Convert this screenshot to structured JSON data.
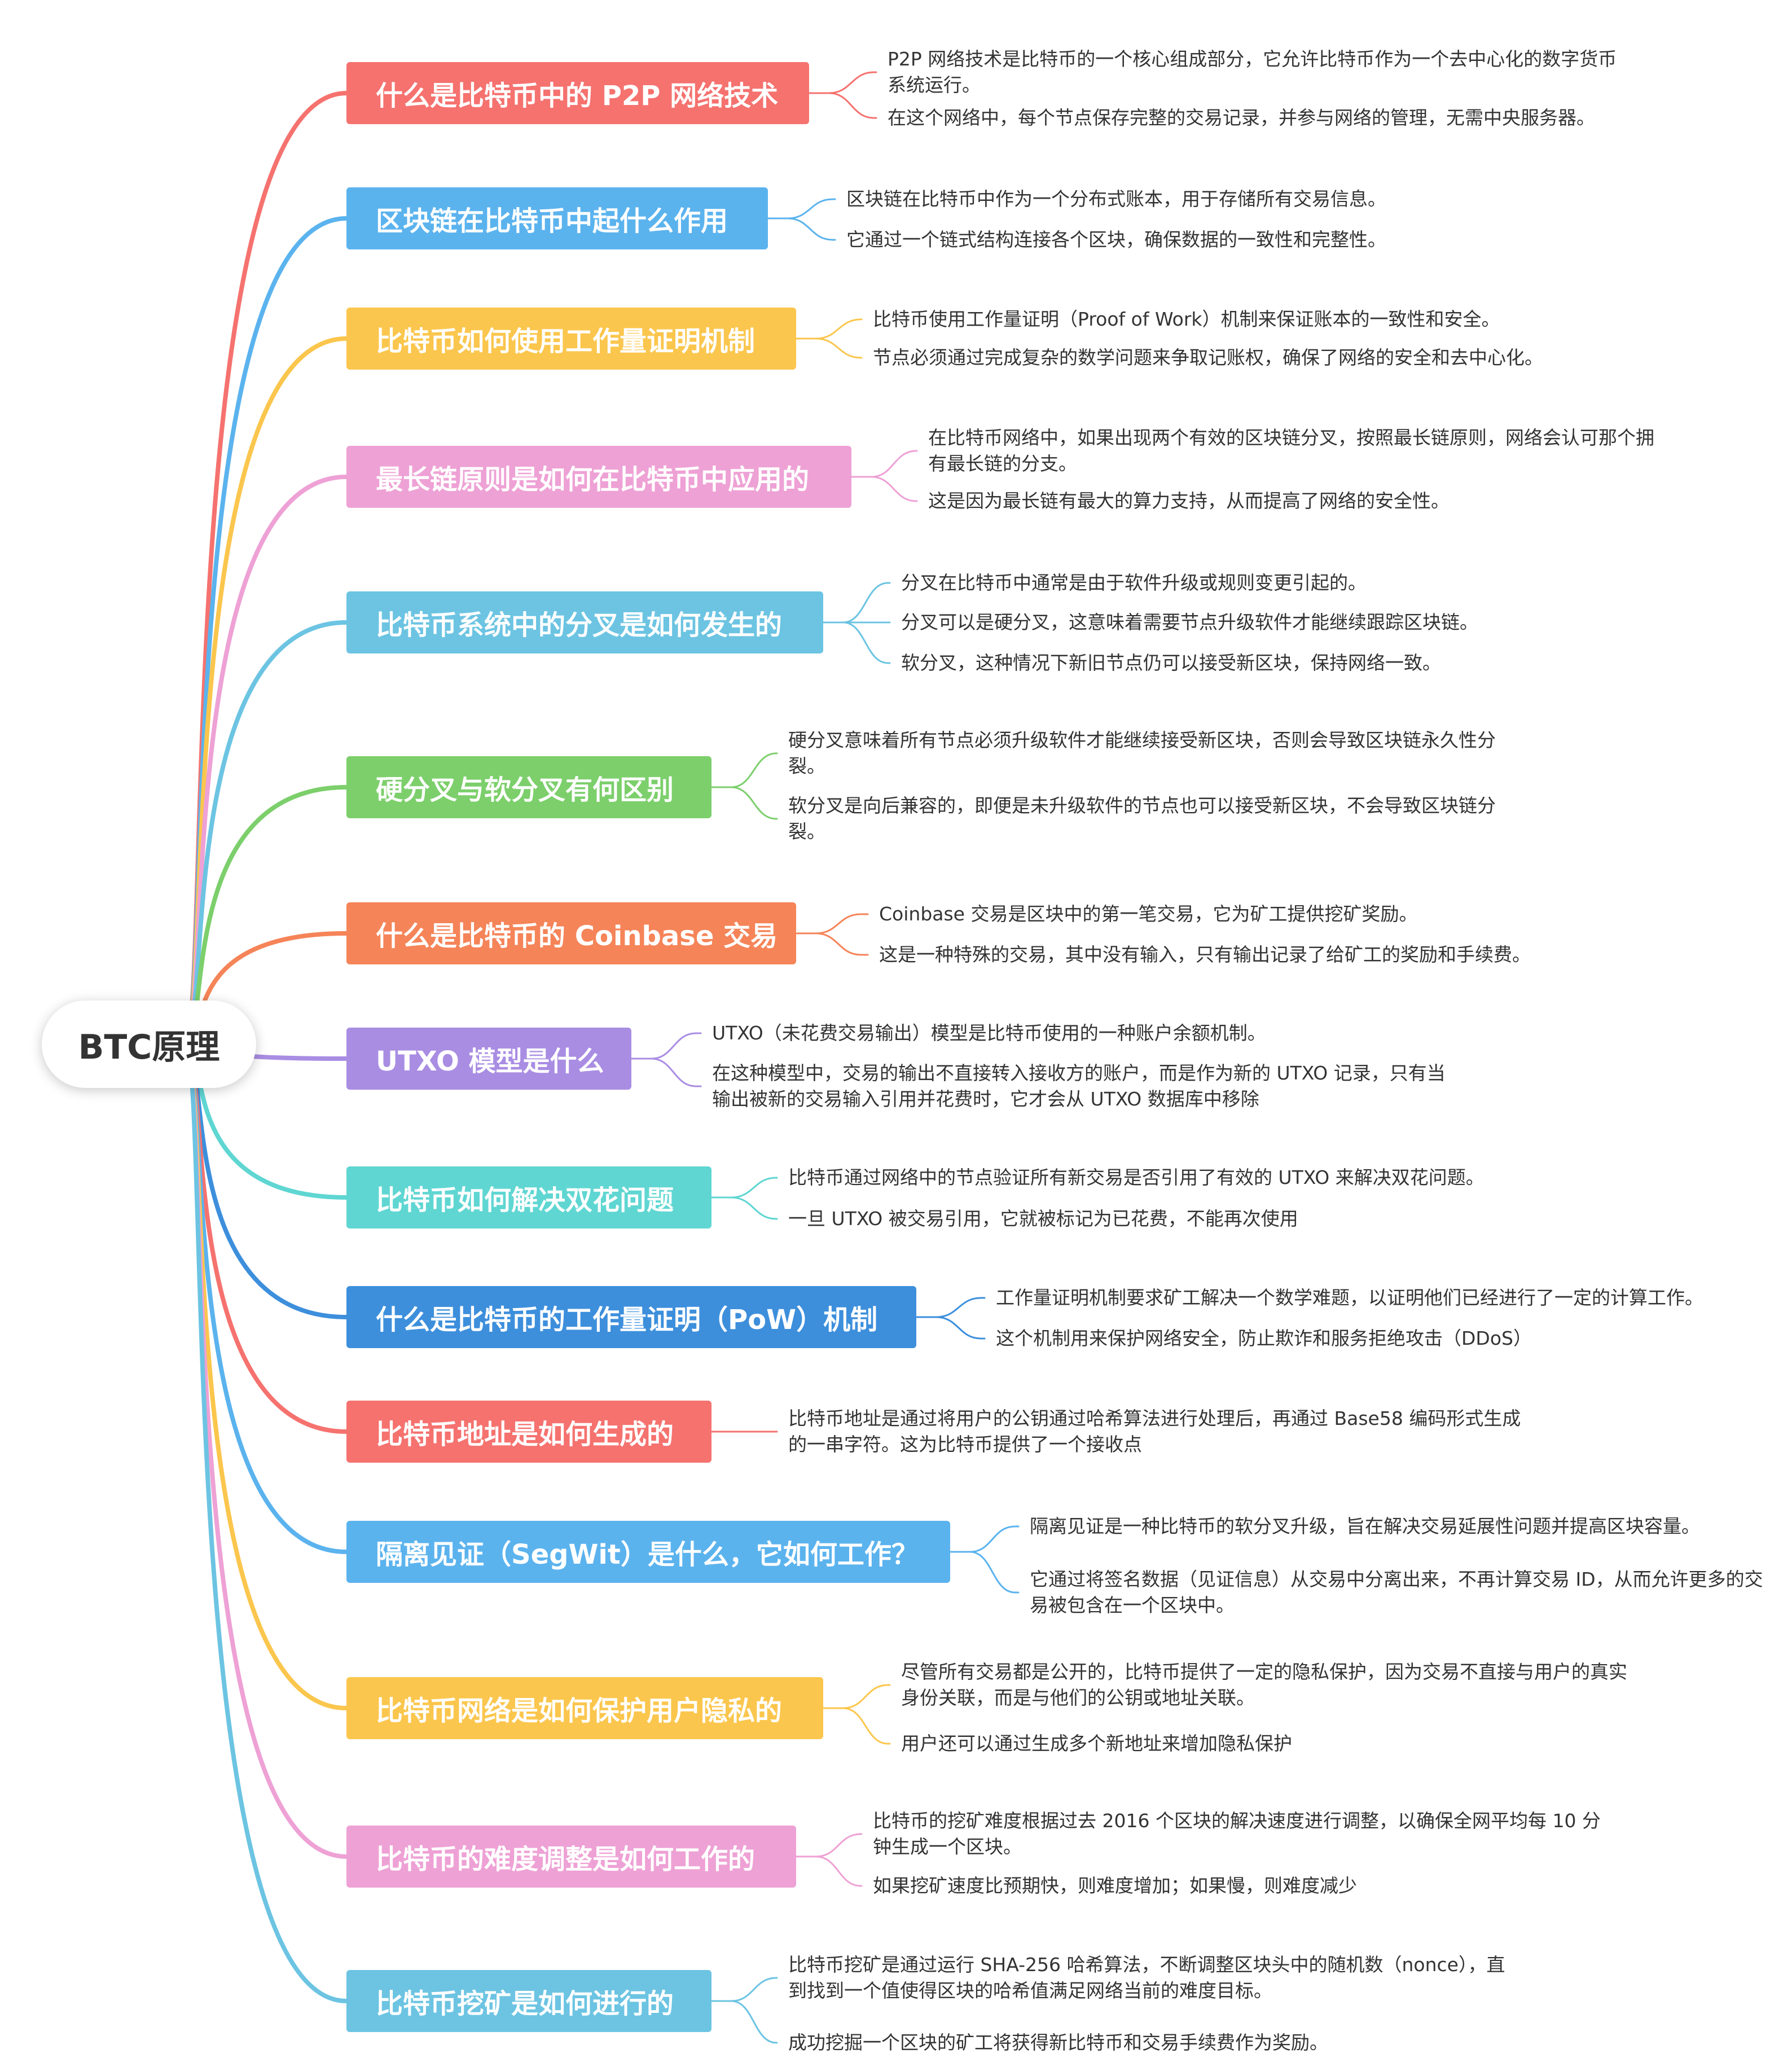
{
  "root": {
    "label": "BTC原理"
  },
  "topics": [
    {
      "label": "什么是比特币中的 P2P 网络技术",
      "color": "#f5726f",
      "notes": [
        "P2P 网络技术是比特币的一个核心组成部分，它允许比特币作为一个去中心化的数字货币系统运行。",
        "在这个网络中，每个节点保存完整的交易记录，并参与网络的管理，无需中央服务器。"
      ]
    },
    {
      "label": "区块链在比特币中起什么作用",
      "color": "#5bb3ee",
      "notes": [
        "区块链在比特币中作为一个分布式账本，用于存储所有交易信息。",
        "它通过一个链式结构连接各个区块，确保数据的一致性和完整性。"
      ]
    },
    {
      "label": "比特币如何使用工作量证明机制",
      "color": "#fbc64d",
      "notes": [
        "比特币使用工作量证明（Proof of Work）机制来保证账本的一致性和安全。",
        "节点必须通过完成复杂的数学问题来争取记账权，确保了网络的安全和去中心化。"
      ]
    },
    {
      "label": "最长链原则是如何在比特币中应用的",
      "color": "#eea1d5",
      "notes": [
        "在比特币网络中，如果出现两个有效的区块链分叉，按照最长链原则，网络会认可那个拥有最长链的分支。",
        "这是因为最长链有最大的算力支持，从而提高了网络的安全性。"
      ]
    },
    {
      "label": "比特币系统中的分叉是如何发生的",
      "color": "#6cc4e2",
      "notes": [
        "分叉在比特币中通常是由于软件升级或规则变更引起的。",
        "分叉可以是硬分叉，这意味着需要节点升级软件才能继续跟踪区块链。",
        "软分叉，这种情况下新旧节点仍可以接受新区块，保持网络一致。"
      ]
    },
    {
      "label": "硬分叉与软分叉有何区别",
      "color": "#7ccf6b",
      "notes": [
        "硬分叉意味着所有节点必须升级软件才能继续接受新区块，否则会导致区块链永久性分裂。",
        "软分叉是向后兼容的，即便是未升级软件的节点也可以接受新区块，不会导致区块链分裂。"
      ]
    },
    {
      "label": "什么是比特币的 Coinbase 交易",
      "color": "#f58458",
      "notes": [
        "Coinbase 交易是区块中的第一笔交易，它为矿工提供挖矿奖励。",
        "这是一种特殊的交易，其中没有输入，只有输出记录了给矿工的奖励和手续费。"
      ]
    },
    {
      "label": "UTXO 模型是什么",
      "color": "#a98de3",
      "notes": [
        "UTXO（未花费交易输出）模型是比特币使用的一种账户余额机制。",
        "在这种模型中，交易的输出不直接转入接收方的账户，而是作为新的 UTXO 记录，只有当输出被新的交易输入引用并花费时，它才会从 UTXO 数据库中移除"
      ]
    },
    {
      "label": "比特币如何解决双花问题",
      "color": "#5fd6d2",
      "notes": [
        "比特币通过网络中的节点验证所有新交易是否引用了有效的 UTXO 来解决双花问题。",
        "一旦 UTXO 被交易引用，它就被标记为已花费，不能再次使用"
      ]
    },
    {
      "label": "什么是比特币的工作量证明（PoW）机制",
      "color": "#3d8fdc",
      "notes": [
        "工作量证明机制要求矿工解决一个数学难题，以证明他们已经进行了一定的计算工作。",
        "这个机制用来保护网络安全，防止欺诈和服务拒绝攻击（DDoS）"
      ]
    },
    {
      "label": "比特币地址是如何生成的",
      "color": "#f5726f",
      "notes": [
        "比特币地址是通过将用户的公钥通过哈希算法进行处理后，再通过 Base58 编码形式生成的一串字符。这为比特币提供了一个接收点"
      ]
    },
    {
      "label": "隔离见证（SegWit）是什么，它如何工作？",
      "color": "#5bb3ee",
      "notes": [
        "隔离见证是一种比特币的软分叉升级，旨在解决交易延展性问题并提高区块容量。",
        "它通过将签名数据（见证信息）从交易中分离出来，不再计算交易 ID，从而允许更多的交易被包含在一个区块中。"
      ]
    },
    {
      "label": "比特币网络是如何保护用户隐私的",
      "color": "#fbc64d",
      "notes": [
        "尽管所有交易都是公开的，比特币提供了一定的隐私保护，因为交易不直接与用户的真实身份关联，而是与他们的公钥或地址关联。",
        "用户还可以通过生成多个新地址来增加隐私保护"
      ]
    },
    {
      "label": "比特币的难度调整是如何工作的",
      "color": "#eea1d5",
      "notes": [
        "比特币的挖矿难度根据过去 2016 个区块的解决速度进行调整，以确保全网平均每 10 分钟生成一个区块。",
        "如果挖矿速度比预期快，则难度增加；如果慢，则难度减少"
      ]
    },
    {
      "label": "比特币挖矿是如何进行的",
      "color": "#6cc4e2",
      "notes": [
        "比特币挖矿是通过运行 SHA-256 哈希算法，不断调整区块头中的随机数（nonce），直到找到一个值使得区块的哈希值满足网络当前的难度目标。",
        "成功挖掘一个区块的矿工将获得新比特币和交易手续费作为奖励。"
      ]
    }
  ]
}
